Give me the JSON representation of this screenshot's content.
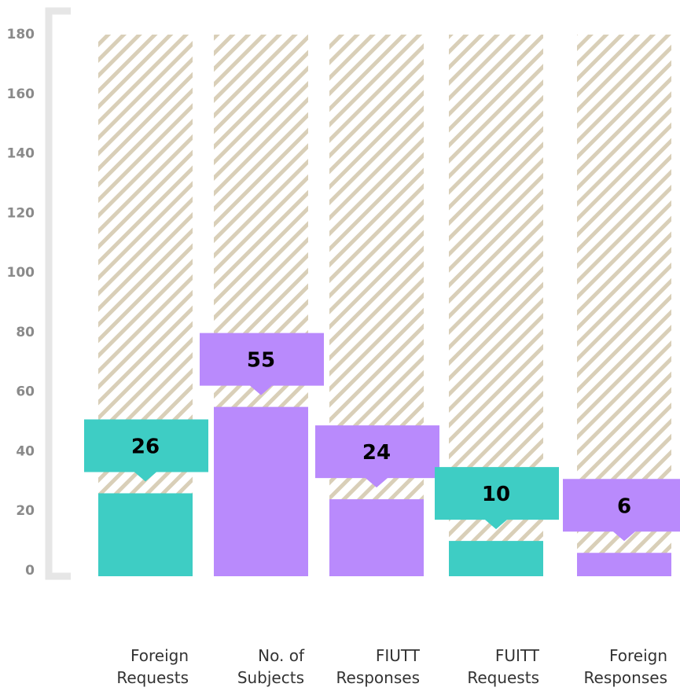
{
  "chart_data": {
    "type": "bar",
    "categories": [
      "Foreign Requests",
      "No. of Subjects",
      "FIUTT Responses",
      "FUITT Requests",
      "Foreign Responses"
    ],
    "values": [
      26,
      55,
      24,
      10,
      6
    ],
    "colors": [
      "#3ecdc4",
      "#b98afc",
      "#b98afc",
      "#3ecdc4",
      "#b98afc"
    ],
    "ylim": [
      0,
      180
    ],
    "yticks": [
      0,
      20,
      40,
      60,
      80,
      100,
      120,
      140,
      160,
      180
    ]
  }
}
